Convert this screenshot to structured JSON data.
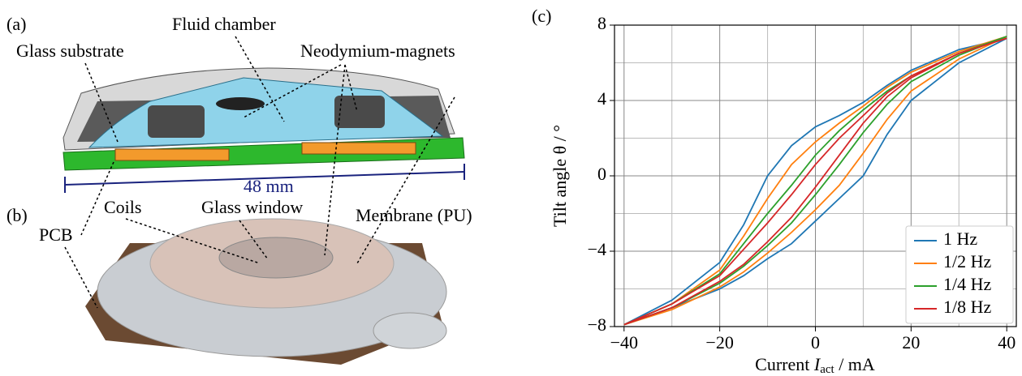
{
  "figure": {
    "a": {
      "label": "(a)",
      "callouts": [
        "Glass substrate",
        "Fluid chamber",
        "Neodymium-magnets",
        "48 mm"
      ]
    },
    "b": {
      "label": "(b)",
      "callouts": [
        "Coils",
        "Glass window",
        "Membrane (PU)",
        "PCB"
      ]
    },
    "c": {
      "label": "(c)"
    }
  },
  "chart_data": {
    "type": "line",
    "xlabel": [
      "Current ",
      "I",
      "act",
      " / mA"
    ],
    "ylabel": "Tilt angle θ / °",
    "x": [
      -40,
      -30,
      -20,
      -15,
      -10,
      -5,
      0,
      5,
      10,
      15,
      20,
      30,
      40,
      30,
      20,
      15,
      10,
      5,
      0,
      -5,
      -10,
      -15,
      -20,
      -30,
      -40
    ],
    "series": [
      {
        "name": "1 Hz",
        "color": "#1f77b4",
        "values": [
          -7.9,
          -7.0,
          -6.0,
          -5.3,
          -4.4,
          -3.6,
          -2.4,
          -1.2,
          0,
          2.2,
          4.0,
          6.0,
          7.3,
          6.7,
          5.6,
          4.8,
          3.9,
          3.2,
          2.6,
          1.6,
          0,
          -2.6,
          -4.6,
          -6.6,
          -7.9
        ]
      },
      {
        "name": "1/2 Hz",
        "color": "#ff7f0e",
        "values": [
          -7.9,
          -7.1,
          -5.9,
          -5.1,
          -4.1,
          -3.0,
          -1.8,
          -0.5,
          1.2,
          3.0,
          4.5,
          6.2,
          7.4,
          6.6,
          5.5,
          4.7,
          3.7,
          2.8,
          1.8,
          0.6,
          -1.2,
          -3.2,
          -5.0,
          -6.8,
          -7.9
        ]
      },
      {
        "name": "1/4 Hz",
        "color": "#2ca02c",
        "values": [
          -7.9,
          -7.0,
          -5.7,
          -4.8,
          -3.7,
          -2.5,
          -1.0,
          0.6,
          2.3,
          3.8,
          5.0,
          6.4,
          7.4,
          6.5,
          5.3,
          4.5,
          3.5,
          2.4,
          1.1,
          -0.5,
          -2.0,
          -3.6,
          -5.2,
          -6.8,
          -7.9
        ]
      },
      {
        "name": "1/8 Hz",
        "color": "#d62728",
        "values": [
          -7.9,
          -7.0,
          -5.6,
          -4.7,
          -3.5,
          -2.2,
          -0.6,
          1.1,
          2.8,
          4.2,
          5.2,
          6.5,
          7.3,
          6.5,
          5.3,
          4.4,
          3.2,
          2.0,
          0.6,
          -1.0,
          -2.5,
          -3.9,
          -5.3,
          -6.8,
          -7.9
        ]
      }
    ],
    "xlim": [
      -42,
      42
    ],
    "ylim": [
      -8,
      8
    ],
    "xticks": [
      {
        "value": -40,
        "label": "−40"
      },
      {
        "value": -20,
        "label": "−20"
      },
      0,
      20,
      40
    ],
    "yticks": [
      {
        "value": -8,
        "label": "−8"
      },
      {
        "value": -4,
        "label": "−4"
      },
      0,
      4,
      8
    ],
    "xminorticks": [
      -30,
      -10,
      10,
      30
    ],
    "yminorticks": [
      -6,
      -2,
      2,
      6
    ],
    "grid": true,
    "legend": "lower right"
  }
}
